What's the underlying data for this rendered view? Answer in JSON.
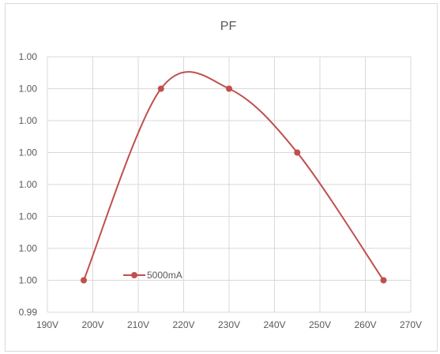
{
  "chart_data": {
    "type": "line",
    "title": "PF",
    "xlabel": "",
    "ylabel": "",
    "x_ticks": [
      "190V",
      "200V",
      "210V",
      "220V",
      "230V",
      "240V",
      "250V",
      "260V",
      "270V"
    ],
    "y_ticks": [
      "0.99",
      "1.00",
      "1.00",
      "1.00",
      "1.00",
      "1.00",
      "1.00",
      "1.00",
      "1.00"
    ],
    "xlim": [
      190,
      270
    ],
    "ylim": [
      0,
      8
    ],
    "grid": true,
    "smooth": true,
    "legend_position": "bottom-left",
    "series": [
      {
        "name": "5000mA",
        "color": "#C0504D",
        "x": [
          198,
          215,
          230,
          245,
          264
        ],
        "y": [
          1,
          7,
          7,
          5,
          1
        ]
      }
    ]
  }
}
